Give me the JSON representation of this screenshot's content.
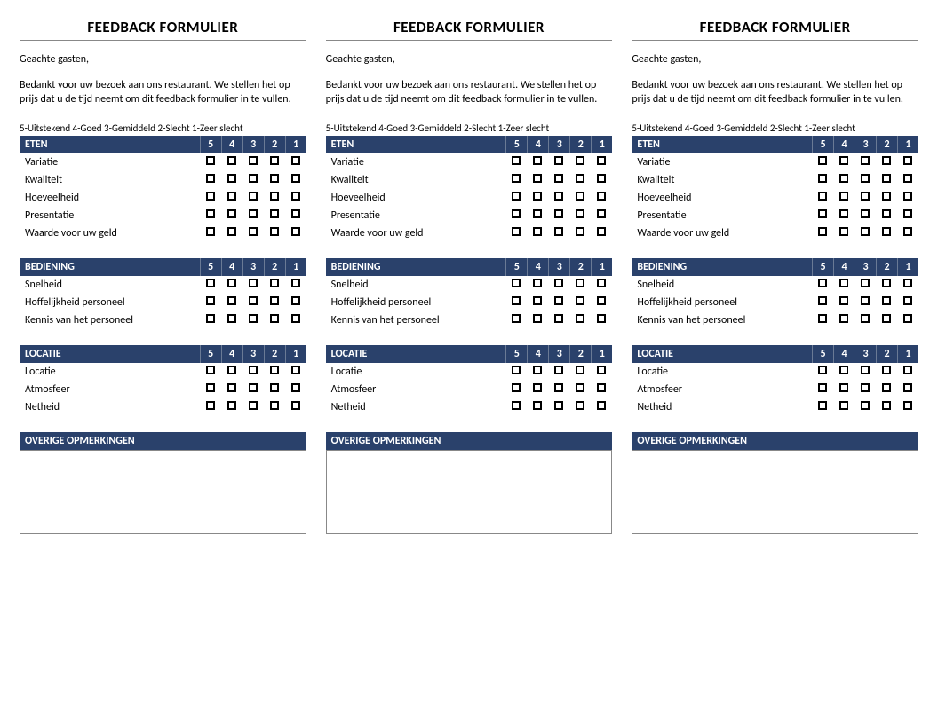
{
  "title": "FEEDBACK FORMULIER",
  "greeting": "Geachte gasten,",
  "intro": "Bedankt voor uw bezoek aan ons restaurant. We stellen het op prijs dat u de tijd neemt om dit feedback formulier in te vullen.",
  "legend": "5-Uitstekend 4-Goed 3-Gemiddeld 2-Slecht 1-Zeer slecht",
  "rating_columns": [
    "5",
    "4",
    "3",
    "2",
    "1"
  ],
  "sections": [
    {
      "title": "ETEN",
      "items": [
        "Variatie",
        "Kwaliteit",
        "Hoeveelheid",
        "Presentatie",
        "Waarde voor uw geld"
      ]
    },
    {
      "title": "BEDIENING",
      "items": [
        "Snelheid",
        "Hoffelijkheid personeel",
        "Kennis van het personeel"
      ]
    },
    {
      "title": "LOCATIE",
      "items": [
        "Locatie",
        "Atmosfeer",
        "Netheid"
      ]
    }
  ],
  "comments_title": "OVERIGE OPMERKINGEN",
  "colors": {
    "header_bg": "#2a416b",
    "header_fg": "#ffffff",
    "rule": "#888888",
    "text": "#000000"
  },
  "copies": 3
}
